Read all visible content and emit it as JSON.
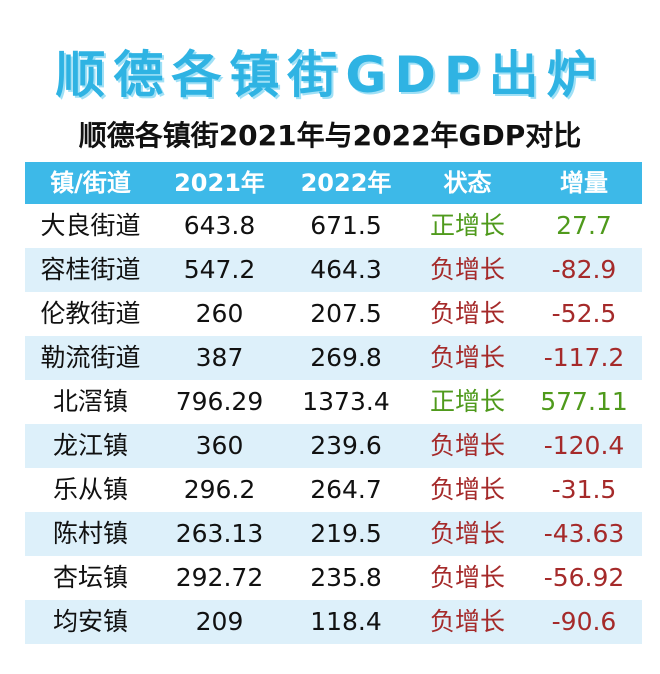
{
  "main_title": "顺德各镇街GDP出炉",
  "sub_title": "顺德各镇街2021年与2022年GDP对比",
  "chart_data": {
    "type": "table",
    "title": "顺德各镇街GDP出炉",
    "subtitle": "顺德各镇街2021年与2022年GDP对比",
    "columns": [
      "镇/街道",
      "2021年",
      "2022年",
      "状态",
      "增量"
    ],
    "rows": [
      [
        "大良街道",
        "643.8",
        "671.5",
        "正增长",
        "27.7"
      ],
      [
        "容桂街道",
        "547.2",
        "464.3",
        "负增长",
        "-82.9"
      ],
      [
        "伦教街道",
        "260",
        "207.5",
        "负增长",
        "-52.5"
      ],
      [
        "勒流街道",
        "387",
        "269.8",
        "负增长",
        "-117.2"
      ],
      [
        "北滘镇",
        "796.29",
        "1373.4",
        "正增长",
        "577.11"
      ],
      [
        "龙江镇",
        "360",
        "239.6",
        "负增长",
        "-120.4"
      ],
      [
        "乐从镇",
        "296.2",
        "264.7",
        "负增长",
        "-31.5"
      ],
      [
        "陈村镇",
        "263.13",
        "219.5",
        "负增长",
        "-43.63"
      ],
      [
        "杏坛镇",
        "292.72",
        "235.8",
        "负增长",
        "-56.92"
      ],
      [
        "均安镇",
        "209",
        "118.4",
        "负增长",
        "-90.6"
      ]
    ]
  },
  "colors": {
    "title": "#2fb3e3",
    "header_bg": "#3db9e8",
    "alt_row_bg": "#ddf0fa",
    "positive": "#4f9a1c",
    "negative": "#a52a2a"
  }
}
